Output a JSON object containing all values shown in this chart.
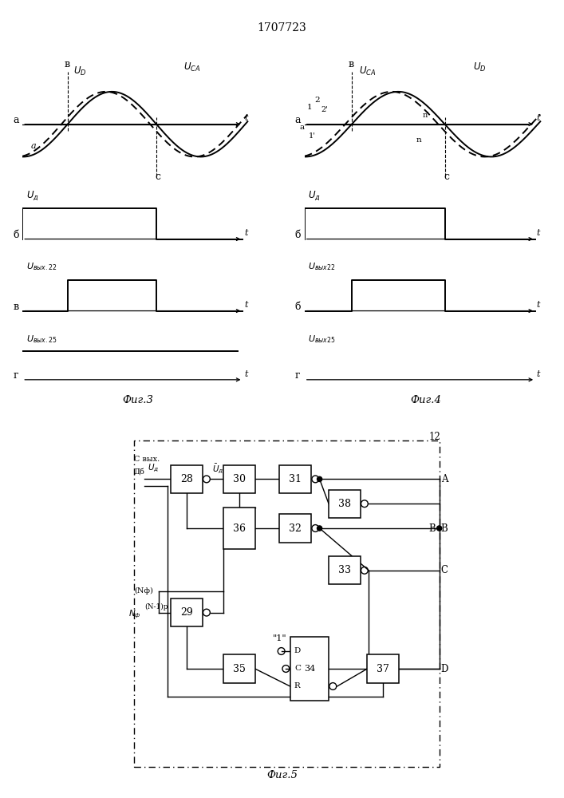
{
  "title": "1707723",
  "fig3_label": "Фиг.3",
  "fig4_label": "Фиг.4",
  "fig5_label": "Фиг.5",
  "bg_color": "#ffffff"
}
